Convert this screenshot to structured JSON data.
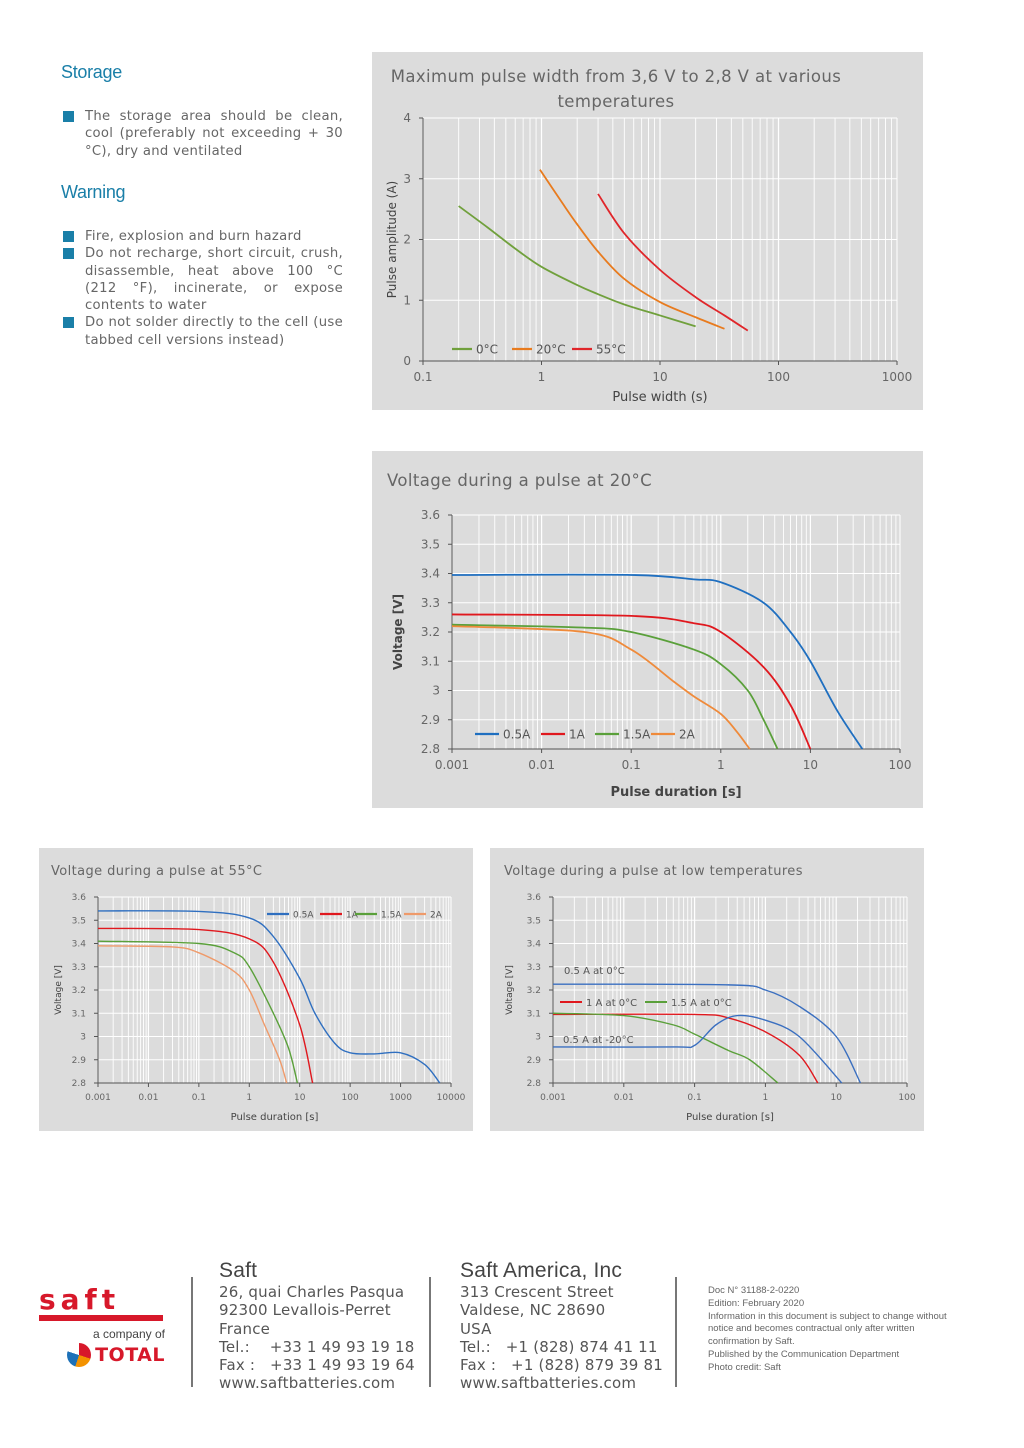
{
  "storage": {
    "heading": "Storage",
    "items": [
      "The storage area should be clean, cool (preferably not exceeding + 30 °C), dry and ventilated"
    ]
  },
  "warning": {
    "heading": "Warning",
    "items": [
      "Fire, explosion and burn hazard",
      "Do not recharge, short circuit, crush, disassemble, heat above 100 °C (212 °F), incinerate, or expose contents to water",
      "Do not solder directly to the cell (use tabbed cell versions instead)"
    ]
  },
  "chart_data": [
    {
      "type": "line",
      "title": "Maximum pulse width from 3,6 V to 2,8 V at various temperatures",
      "xlabel": "Pulse width (s)",
      "ylabel": "Pulse amplitude (A)",
      "xscale": "log",
      "xlim": [
        0.1,
        1000
      ],
      "ylim": [
        0,
        4
      ],
      "xticks": [
        {
          "v": 0.1,
          "l": "0.1"
        },
        {
          "v": 1,
          "l": "1"
        },
        {
          "v": 10,
          "l": "10"
        },
        {
          "v": 100,
          "l": "100"
        },
        {
          "v": 1000,
          "l": "1000"
        }
      ],
      "yticks": [
        {
          "v": 0,
          "l": "0"
        },
        {
          "v": 1,
          "l": "1"
        },
        {
          "v": 2,
          "l": "2"
        },
        {
          "v": 3,
          "l": "3"
        },
        {
          "v": 4,
          "l": "4"
        }
      ],
      "legend": "bottom-left",
      "grid": true,
      "series": [
        {
          "name": "0°C",
          "color": "#70a03c",
          "points": [
            [
              0.2,
              2.55
            ],
            [
              0.35,
              2.2
            ],
            [
              0.6,
              1.85
            ],
            [
              1,
              1.55
            ],
            [
              2,
              1.25
            ],
            [
              3,
              1.1
            ],
            [
              5,
              0.93
            ],
            [
              10,
              0.75
            ],
            [
              20,
              0.57
            ]
          ]
        },
        {
          "name": "20°C",
          "color": "#e87b1e",
          "points": [
            [
              0.97,
              3.15
            ],
            [
              1.5,
              2.6
            ],
            [
              2,
              2.25
            ],
            [
              3,
              1.8
            ],
            [
              5,
              1.35
            ],
            [
              10,
              0.97
            ],
            [
              20,
              0.72
            ],
            [
              35,
              0.53
            ]
          ]
        },
        {
          "name": "55°C",
          "color": "#e0262a",
          "points": [
            [
              3,
              2.75
            ],
            [
              5,
              2.1
            ],
            [
              10,
              1.5
            ],
            [
              20,
              1.05
            ],
            [
              35,
              0.75
            ],
            [
              55,
              0.5
            ]
          ]
        }
      ]
    },
    {
      "type": "line",
      "title": "Voltage during a pulse at 20°C",
      "xlabel": "Pulse duration [s]",
      "ylabel": "Voltage [V]",
      "xscale": "log",
      "xlim": [
        0.001,
        100
      ],
      "ylim": [
        2.8,
        3.6
      ],
      "xticks": [
        {
          "v": 0.001,
          "l": "0.001"
        },
        {
          "v": 0.01,
          "l": "0.01"
        },
        {
          "v": 0.1,
          "l": "0.1"
        },
        {
          "v": 1,
          "l": "1"
        },
        {
          "v": 10,
          "l": "10"
        },
        {
          "v": 100,
          "l": "100"
        }
      ],
      "yticks": [
        {
          "v": 2.8,
          "l": "2.8"
        },
        {
          "v": 2.9,
          "l": "2.9"
        },
        {
          "v": 3.0,
          "l": "3"
        },
        {
          "v": 3.1,
          "l": "3.1"
        },
        {
          "v": 3.2,
          "l": "3.2"
        },
        {
          "v": 3.3,
          "l": "3.3"
        },
        {
          "v": 3.4,
          "l": "3.4"
        },
        {
          "v": 3.5,
          "l": "3.5"
        },
        {
          "v": 3.6,
          "l": "3.6"
        }
      ],
      "legend": "bottom-left",
      "grid": true,
      "series": [
        {
          "name": "0.5A",
          "color": "#1f6fc0",
          "points": [
            [
              0.001,
              3.395
            ],
            [
              0.1,
              3.395
            ],
            [
              0.5,
              3.38
            ],
            [
              1,
              3.37
            ],
            [
              3,
              3.3
            ],
            [
              6,
              3.2
            ],
            [
              10,
              3.1
            ],
            [
              20,
              2.93
            ],
            [
              38,
              2.8
            ]
          ]
        },
        {
          "name": "1A",
          "color": "#e0181e",
          "points": [
            [
              0.001,
              3.26
            ],
            [
              0.1,
              3.255
            ],
            [
              0.5,
              3.23
            ],
            [
              1,
              3.2
            ],
            [
              3,
              3.08
            ],
            [
              6,
              2.95
            ],
            [
              10,
              2.8
            ]
          ]
        },
        {
          "name": "1.5A",
          "color": "#5aa03a",
          "points": [
            [
              0.001,
              3.225
            ],
            [
              0.03,
              3.215
            ],
            [
              0.1,
              3.2
            ],
            [
              0.5,
              3.14
            ],
            [
              1,
              3.09
            ],
            [
              2,
              3.0
            ],
            [
              3,
              2.9
            ],
            [
              4.3,
              2.8
            ]
          ]
        },
        {
          "name": "2A",
          "color": "#ef8a3a",
          "points": [
            [
              0.001,
              3.22
            ],
            [
              0.03,
              3.2
            ],
            [
              0.1,
              3.14
            ],
            [
              0.3,
              3.03
            ],
            [
              0.5,
              2.98
            ],
            [
              1,
              2.92
            ],
            [
              1.5,
              2.86
            ],
            [
              2.1,
              2.8
            ]
          ]
        }
      ]
    },
    {
      "type": "line",
      "title": "Voltage during a pulse at 55°C",
      "xlabel": "Pulse duration [s]",
      "ylabel": "Voltage [V]",
      "xscale": "log",
      "xlim": [
        0.001,
        10000
      ],
      "ylim": [
        2.8,
        3.6
      ],
      "xticks": [
        {
          "v": 0.001,
          "l": "0.001"
        },
        {
          "v": 0.01,
          "l": "0.01"
        },
        {
          "v": 0.1,
          "l": "0.1"
        },
        {
          "v": 1,
          "l": "1"
        },
        {
          "v": 10,
          "l": "10"
        },
        {
          "v": 100,
          "l": "100"
        },
        {
          "v": 1000,
          "l": "1000"
        },
        {
          "v": 10000,
          "l": "10000"
        }
      ],
      "yticks": [
        {
          "v": 2.8,
          "l": "2.8"
        },
        {
          "v": 2.9,
          "l": "2.9"
        },
        {
          "v": 3.0,
          "l": "3"
        },
        {
          "v": 3.1,
          "l": "3.1"
        },
        {
          "v": 3.2,
          "l": "3.2"
        },
        {
          "v": 3.3,
          "l": "3.3"
        },
        {
          "v": 3.4,
          "l": "3.4"
        },
        {
          "v": 3.5,
          "l": "3.5"
        },
        {
          "v": 3.6,
          "l": "3.6"
        }
      ],
      "legend": "top-right",
      "grid": true,
      "series": [
        {
          "name": "0.5A",
          "color": "#2f6fc0",
          "points": [
            [
              0.001,
              3.54
            ],
            [
              0.1,
              3.538
            ],
            [
              1,
              3.51
            ],
            [
              3,
              3.43
            ],
            [
              10,
              3.25
            ],
            [
              20,
              3.1
            ],
            [
              50,
              2.97
            ],
            [
              100,
              2.93
            ],
            [
              300,
              2.925
            ],
            [
              1000,
              2.93
            ],
            [
              3000,
              2.88
            ],
            [
              6000,
              2.8
            ]
          ]
        },
        {
          "name": "1A",
          "color": "#e0181e",
          "points": [
            [
              0.001,
              3.465
            ],
            [
              0.1,
              3.46
            ],
            [
              1,
              3.42
            ],
            [
              3,
              3.32
            ],
            [
              10,
              3.05
            ],
            [
              18,
              2.8
            ]
          ]
        },
        {
          "name": "1.5A",
          "color": "#5aa03a",
          "points": [
            [
              0.001,
              3.41
            ],
            [
              0.1,
              3.4
            ],
            [
              0.5,
              3.36
            ],
            [
              1,
              3.3
            ],
            [
              3,
              3.1
            ],
            [
              6,
              2.95
            ],
            [
              9,
              2.8
            ]
          ]
        },
        {
          "name": "2A",
          "color": "#ef9a6a",
          "points": [
            [
              0.001,
              3.39
            ],
            [
              0.03,
              3.385
            ],
            [
              0.1,
              3.36
            ],
            [
              0.5,
              3.28
            ],
            [
              1,
              3.2
            ],
            [
              2,
              3.05
            ],
            [
              4,
              2.9
            ],
            [
              5.5,
              2.8
            ]
          ]
        }
      ]
    },
    {
      "type": "line",
      "title": "Voltage during a pulse at low temperatures",
      "xlabel": "Pulse duration [s]",
      "ylabel": "Voltage [V]",
      "xscale": "log",
      "xlim": [
        0.001,
        100
      ],
      "ylim": [
        2.8,
        3.6
      ],
      "xticks": [
        {
          "v": 0.001,
          "l": "0.001"
        },
        {
          "v": 0.01,
          "l": "0.01"
        },
        {
          "v": 0.1,
          "l": "0.1"
        },
        {
          "v": 1,
          "l": "1"
        },
        {
          "v": 10,
          "l": "10"
        },
        {
          "v": 100,
          "l": "100"
        }
      ],
      "yticks": [
        {
          "v": 2.8,
          "l": "2.8"
        },
        {
          "v": 2.9,
          "l": "2.9"
        },
        {
          "v": 3.0,
          "l": "3"
        },
        {
          "v": 3.1,
          "l": "3.1"
        },
        {
          "v": 3.2,
          "l": "3.2"
        },
        {
          "v": 3.3,
          "l": "3.3"
        },
        {
          "v": 3.4,
          "l": "3.4"
        },
        {
          "v": 3.5,
          "l": "3.5"
        },
        {
          "v": 3.6,
          "l": "3.6"
        }
      ],
      "legend": "inline-annotations",
      "grid": true,
      "series": [
        {
          "name": "0.5 A at 0°C",
          "color": "#3a6fc0",
          "points": [
            [
              0.001,
              3.225
            ],
            [
              0.3,
              3.222
            ],
            [
              1,
              3.2
            ],
            [
              3,
              3.13
            ],
            [
              10,
              3.0
            ],
            [
              22,
              2.8
            ]
          ]
        },
        {
          "name": "1 A at 0°C",
          "color": "#e0181e",
          "points": [
            [
              0.001,
              3.095
            ],
            [
              0.1,
              3.095
            ],
            [
              0.3,
              3.08
            ],
            [
              1,
              3.02
            ],
            [
              3,
              2.92
            ],
            [
              5.5,
              2.8
            ]
          ]
        },
        {
          "name": "1.5 A at 0°C",
          "color": "#5aa03a",
          "points": [
            [
              0.001,
              3.1
            ],
            [
              0.01,
              3.09
            ],
            [
              0.05,
              3.05
            ],
            [
              0.1,
              3.01
            ],
            [
              0.3,
              2.94
            ],
            [
              0.6,
              2.9
            ],
            [
              1.5,
              2.8
            ]
          ]
        },
        {
          "name": "0.5 A at -20°C",
          "color": "#3a6fc0",
          "points": [
            [
              0.001,
              2.955
            ],
            [
              0.05,
              2.955
            ],
            [
              0.1,
              2.962
            ],
            [
              0.2,
              3.05
            ],
            [
              0.4,
              3.09
            ],
            [
              1,
              3.07
            ],
            [
              3,
              3.0
            ],
            [
              12,
              2.8
            ]
          ]
        }
      ]
    }
  ],
  "footer": {
    "logo": {
      "brand": "saft",
      "tagline": "a company of",
      "parent": "TOTAL",
      "brand_color": "#d7182a"
    },
    "saft": {
      "name": "Saft",
      "lines": [
        "26, quai Charles Pasqua",
        "92300 Levallois-Perret",
        "France",
        "Tel.:    +33 1 49 93 19 18",
        "Fax :   +33 1 49 93 19 64",
        "www.saftbatteries.com"
      ]
    },
    "america": {
      "name": "Saft America, Inc",
      "lines": [
        "313 Crescent Street",
        "Valdese, NC 28690",
        "USA",
        "Tel.:   +1 (828) 874 41 11",
        "Fax :   +1 (828) 879 39 81",
        "www.saftbatteries.com"
      ]
    },
    "legal": [
      "Doc N° 31188-2-0220",
      "Edition: February 2020",
      "Information in this document is subject to change without",
      "notice and becomes contractual only after written",
      "confirmation by Saft.",
      "Published by the Communication Department",
      "Photo credit: Saft"
    ]
  }
}
